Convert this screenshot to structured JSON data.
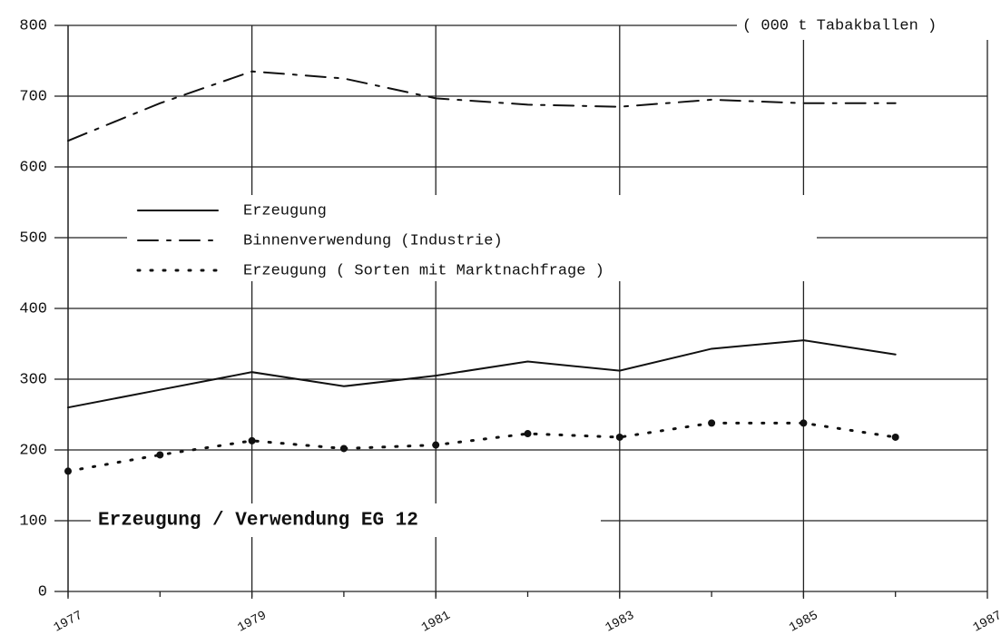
{
  "chart_data": {
    "type": "line",
    "title": "Erzeugung / Verwendung EG 12",
    "unit_label": "( 000 t Tabakballen )",
    "x": [
      1977,
      1978,
      1979,
      1980,
      1981,
      1982,
      1983,
      1984,
      1985,
      1986
    ],
    "series": [
      {
        "name": "Erzeugung",
        "color": "#111111",
        "style": "solid",
        "values": [
          260,
          285,
          310,
          290,
          305,
          325,
          312,
          343,
          355,
          335
        ]
      },
      {
        "name": "Binnenverwendung (Industrie)",
        "color": "#111111",
        "style": "dashdot",
        "values": [
          637,
          690,
          735,
          725,
          697,
          688,
          685,
          695,
          690,
          690
        ]
      },
      {
        "name": "Erzeugung ( Sorten mit Marktnachfrage )",
        "color": "#111111",
        "style": "dotted",
        "values": [
          170,
          193,
          213,
          202,
          207,
          223,
          218,
          238,
          238,
          218
        ]
      }
    ],
    "xlim": [
      1977,
      1987
    ],
    "xticks": [
      1977,
      1979,
      1981,
      1983,
      1985,
      1987
    ],
    "ylim": [
      0,
      800
    ],
    "yticks": [
      0,
      100,
      200,
      300,
      400,
      500,
      600,
      700,
      800
    ],
    "grid": true
  }
}
